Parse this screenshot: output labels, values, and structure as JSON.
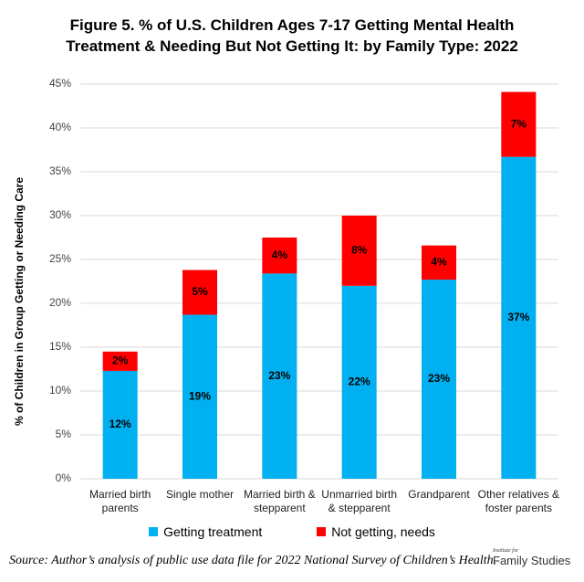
{
  "chart_data": {
    "type": "stacked_bar",
    "title": "Figure 5. % of U.S. Children Ages 7-17 Getting Mental Health Treatment & Needing But Not Getting It: by Family Type: 2022",
    "y_label": "% of Children in Group Getting or Needing Care",
    "categories": [
      "Married birth parents",
      "Single mother",
      "Married birth & stepparent",
      "Unmarried birth & stepparent",
      "Grandparent",
      "Other relatives & foster parents"
    ],
    "series": [
      {
        "name": "Getting treatment",
        "color": "#00b0f0",
        "values": [
          12.3,
          18.7,
          23.4,
          22.0,
          22.7,
          36.7
        ],
        "value_labels": [
          "12%",
          "19%",
          "23%",
          "22%",
          "23%",
          "37%"
        ]
      },
      {
        "name": "Not getting, needs",
        "color": "#ff0000",
        "values": [
          2.2,
          5.1,
          4.1,
          8.0,
          3.9,
          7.4
        ],
        "value_labels": [
          "2%",
          "5%",
          "4%",
          "8%",
          "4%",
          "7%"
        ]
      }
    ],
    "ylim": [
      0,
      45
    ],
    "yticks": [
      {
        "value": 0,
        "label": "0%"
      },
      {
        "value": 5,
        "label": "5%"
      },
      {
        "value": 10,
        "label": "10%"
      },
      {
        "value": 15,
        "label": "15%"
      },
      {
        "value": 20,
        "label": "20%"
      },
      {
        "value": 25,
        "label": "25%"
      },
      {
        "value": 30,
        "label": "30%"
      },
      {
        "value": 35,
        "label": "35%"
      },
      {
        "value": 40,
        "label": "40%"
      },
      {
        "value": 45,
        "label": "45%"
      }
    ],
    "grid": true,
    "legend": "bottom",
    "source": "Source: Author’s analysis of public use data file for 2022 National Survey of Children’s Health.",
    "logo": {
      "small": "Institute for",
      "large": "Family Studies"
    }
  }
}
